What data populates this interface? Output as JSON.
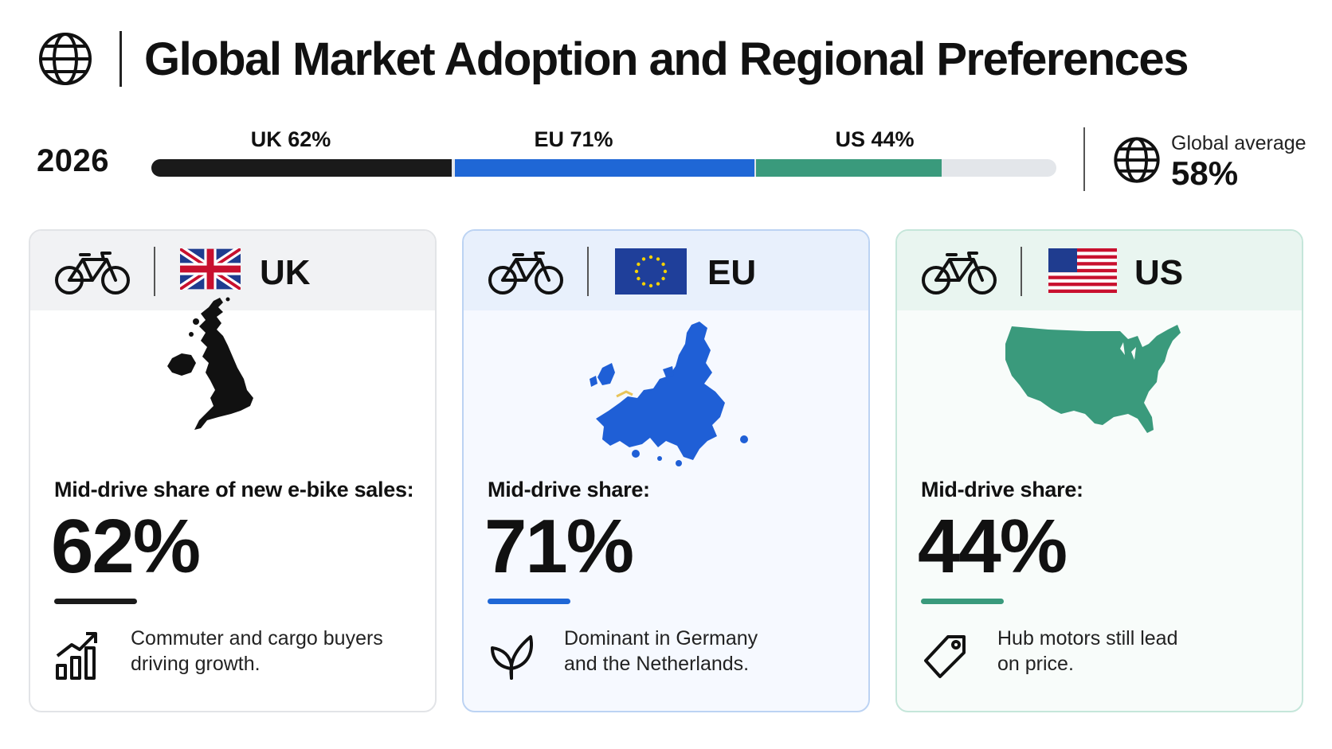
{
  "header": {
    "title": "Global Market Adoption and Regional Preferences",
    "icon": "globe-icon"
  },
  "timeline": {
    "year": "2026",
    "segments": [
      {
        "label": "UK 62%",
        "region": "UK",
        "share_percent": 62,
        "color": "#1a1a1a"
      },
      {
        "label": "EU 71%",
        "region": "EU",
        "share_percent": 71,
        "color": "#1f67d6"
      },
      {
        "label": "US 44%",
        "region": "US",
        "share_percent": 44,
        "color": "#3a9a7c"
      }
    ],
    "global": {
      "label": "Global average",
      "value": "58%",
      "icon": "globe-icon"
    }
  },
  "cards": [
    {
      "region": "UK",
      "accent": "#1a1a1a",
      "icons": [
        "bicycle-icon",
        "uk-flag-icon",
        "uk-map",
        "growth-chart-icon"
      ],
      "metric_label": "Mid-drive share of new e-bike sales:",
      "metric_value": "62%",
      "note_line1": "Commuter and cargo buyers",
      "note_line2": "driving growth."
    },
    {
      "region": "EU",
      "accent": "#1f67d6",
      "icons": [
        "bicycle-icon",
        "eu-flag-icon",
        "europe-map",
        "leaf-icon"
      ],
      "metric_label": "Mid-drive share:",
      "metric_value": "71%",
      "note_line1": "Dominant in Germany",
      "note_line2": "and the Netherlands."
    },
    {
      "region": "US",
      "accent": "#3a9a7c",
      "icons": [
        "bicycle-icon",
        "us-flag-icon",
        "usa-map",
        "price-tag-icon"
      ],
      "metric_label": "Mid-drive share:",
      "metric_value": "44%",
      "note_line1": "Hub motors still lead",
      "note_line2": "on price."
    }
  ]
}
